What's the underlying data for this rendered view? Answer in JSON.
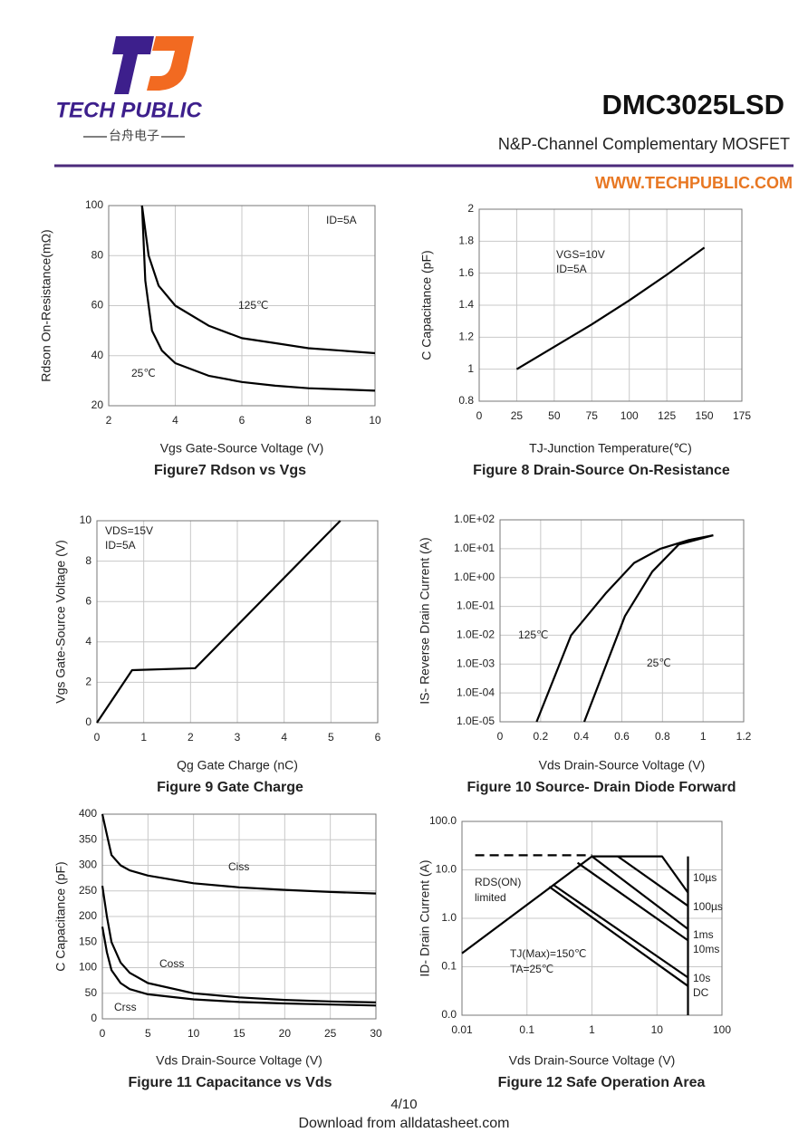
{
  "header": {
    "logo": "TECH PUBLIC",
    "logo_sub": "台舟电子",
    "title": "DMC3025LSD",
    "subtitle": "N&P-Channel Complementary MOSFET",
    "website": "WWW.TECHPUBLIC.COM"
  },
  "footer": {
    "page": "4/10",
    "note": "Download from alldatasheet.com"
  },
  "chart_data": [
    {
      "type": "line",
      "caption": "Figure7 Rdson vs Vgs",
      "x_label": "Vgs Gate-Source Voltage (V)",
      "y_label": "Rdson On-Resistance(mΩ)",
      "xlim": [
        2,
        10
      ],
      "xticks": [
        2,
        4,
        6,
        8,
        10
      ],
      "ylim": [
        20,
        100
      ],
      "yticks": [
        20,
        40,
        60,
        80,
        100
      ],
      "grid": true,
      "color": "#000000",
      "annotations": [
        "ID=5A"
      ],
      "series": [
        {
          "name": "125℃",
          "x": [
            3.0,
            3.2,
            3.5,
            4,
            5,
            6,
            7,
            8,
            9,
            10
          ],
          "values": [
            100,
            80,
            68,
            60,
            52,
            47,
            45,
            43,
            42,
            41
          ]
        },
        {
          "name": "25℃",
          "x": [
            3.0,
            3.1,
            3.3,
            3.6,
            4,
            5,
            6,
            7,
            8,
            9,
            10
          ],
          "values": [
            100,
            70,
            50,
            42,
            37,
            32,
            29.5,
            28,
            27,
            26.5,
            26
          ]
        }
      ]
    },
    {
      "type": "line",
      "caption": "Figure 8 Drain-Source On-Resistance",
      "x_label": "TJ-Junction Temperature(℃)",
      "y_label": "C Capacitance (pF)",
      "xlim": [
        0,
        175
      ],
      "xticks": [
        0,
        25,
        50,
        75,
        100,
        125,
        150,
        175
      ],
      "ylim": [
        0.8,
        2
      ],
      "yticks": [
        0.8,
        1,
        1.2,
        1.4,
        1.6,
        1.8,
        2
      ],
      "grid": true,
      "color": "#000000",
      "annotations": [
        "VGS=10V",
        "ID=5A"
      ],
      "series": [
        {
          "x": [
            25,
            50,
            75,
            100,
            125,
            150
          ],
          "values": [
            1.0,
            1.14,
            1.28,
            1.43,
            1.59,
            1.76
          ]
        }
      ]
    },
    {
      "type": "line",
      "caption": "Figure 9 Gate Charge",
      "x_label": "Qg Gate Charge (nC)",
      "y_label": "Vgs Gate-Source Voltage (V)",
      "xlim": [
        0,
        6
      ],
      "xticks": [
        0,
        1,
        2,
        3,
        4,
        5,
        6
      ],
      "ylim": [
        0,
        10
      ],
      "yticks": [
        0,
        2,
        4,
        6,
        8,
        10
      ],
      "grid": true,
      "color": "#000000",
      "annotations": [
        "VDS=15V",
        "ID=5A"
      ],
      "series": [
        {
          "x": [
            0,
            0.75,
            2.1,
            5.2
          ],
          "values": [
            0,
            2.6,
            2.7,
            10
          ]
        }
      ]
    },
    {
      "type": "line",
      "caption": "Figure 10 Source- Drain Diode Forward",
      "x_label": "Vds Drain-Source Voltage (V)",
      "y_label": "IS- Reverse Drain Current (A)",
      "xlim": [
        0,
        1.2
      ],
      "xticks": [
        0,
        0.2,
        0.4,
        0.6,
        0.8,
        1.0,
        1.2
      ],
      "ylim": [
        1e-05,
        100
      ],
      "ylog": true,
      "yticks": [
        {
          "value": 1e-05,
          "label": "1.0E-05"
        },
        {
          "value": 0.0001,
          "label": "1.0E-04"
        },
        {
          "value": 0.001,
          "label": "1.0E-03"
        },
        {
          "value": 0.01,
          "label": "1.0E-02"
        },
        {
          "value": 0.1,
          "label": "1.0E-01"
        },
        {
          "value": 1,
          "label": "1.0E+00"
        },
        {
          "value": 10,
          "label": "1.0E+01"
        },
        {
          "value": 100,
          "label": "1.0E+02"
        }
      ],
      "grid": true,
      "color": "#000000",
      "annotations": [],
      "series": [
        {
          "name": "125℃",
          "x": [
            0.18,
            0.35,
            0.52,
            0.66,
            0.79,
            0.93,
            1.05
          ],
          "values": [
            1e-05,
            0.01,
            0.28,
            3.2,
            10,
            20,
            29
          ]
        },
        {
          "name": "25℃",
          "x": [
            0.415,
            0.615,
            0.75,
            0.88,
            1.05
          ],
          "values": [
            1e-05,
            0.046,
            1.6,
            14,
            29
          ]
        }
      ]
    },
    {
      "type": "line",
      "caption": "Figure 11 Capacitance vs Vds",
      "x_label": "Vds Drain-Source Voltage (V)",
      "y_label": "C Capacitance (pF)",
      "xlim": [
        0,
        30
      ],
      "xticks": [
        0,
        5,
        10,
        15,
        20,
        25,
        30
      ],
      "ylim": [
        0,
        400
      ],
      "yticks": [
        0,
        50,
        100,
        150,
        200,
        250,
        300,
        350,
        400
      ],
      "grid": true,
      "color": "#000000",
      "annotations": [],
      "series": [
        {
          "name": "Ciss",
          "x": [
            0,
            0.5,
            1,
            2,
            3,
            5,
            10,
            15,
            20,
            25,
            30
          ],
          "values": [
            400,
            360,
            320,
            300,
            290,
            280,
            265,
            257,
            252,
            248,
            245
          ]
        },
        {
          "name": "Coss",
          "x": [
            0,
            0.5,
            1,
            2,
            3,
            5,
            10,
            15,
            20,
            25,
            30
          ],
          "values": [
            260,
            200,
            150,
            110,
            90,
            70,
            50,
            42,
            37,
            34,
            32
          ]
        },
        {
          "name": "Crss",
          "x": [
            0,
            0.5,
            1,
            2,
            3,
            5,
            10,
            15,
            20,
            25,
            30
          ],
          "values": [
            180,
            130,
            95,
            70,
            58,
            48,
            38,
            33,
            30,
            28,
            26
          ]
        }
      ]
    },
    {
      "type": "line",
      "caption": "Figure 12 Safe Operation Area",
      "x_label": "Vds Drain-Source Voltage (V)",
      "y_label": "ID- Drain Current (A)",
      "xlim": [
        0.01,
        100
      ],
      "xlog": true,
      "xticks": [
        0.01,
        0.1,
        1,
        10,
        100
      ],
      "ylim": [
        0.01,
        100
      ],
      "ylog": true,
      "yticks": [
        {
          "value": 0.01,
          "label": "0.0"
        },
        0.1,
        {
          "value": 1,
          "label": "1.0"
        },
        {
          "value": 10,
          "label": "10.0"
        },
        {
          "value": 100,
          "label": "100.0"
        }
      ],
      "grid": true,
      "color": "#000000",
      "annotations": [
        "RDS(ON)",
        "limited",
        "TJ(Max)=150℃",
        "TA=25℃"
      ],
      "series": [
        {
          "x": [
            0.01,
            1
          ],
          "values": [
            0.19,
            19
          ]
        },
        {
          "x": [
            0.016,
            1
          ],
          "values": [
            20,
            20
          ],
          "dashed": true
        },
        {
          "name": "10µs",
          "x": [
            1,
            12,
            30
          ],
          "values": [
            19,
            19,
            3.4
          ]
        },
        {
          "name": "100µs",
          "x": [
            2.5,
            30
          ],
          "values": [
            19,
            1.8
          ]
        },
        {
          "name": "1ms",
          "x": [
            1,
            30
          ],
          "values": [
            19,
            0.6
          ]
        },
        {
          "name": "10ms",
          "x": [
            0.6,
            30
          ],
          "values": [
            14,
            0.35
          ]
        },
        {
          "name": "10s",
          "x": [
            0.25,
            30
          ],
          "values": [
            5,
            0.06
          ]
        },
        {
          "name": "DC",
          "x": [
            0.22,
            30
          ],
          "values": [
            4.5,
            0.04
          ]
        },
        {
          "x": [
            30,
            30
          ],
          "values": [
            19,
            0.01
          ]
        }
      ]
    }
  ]
}
